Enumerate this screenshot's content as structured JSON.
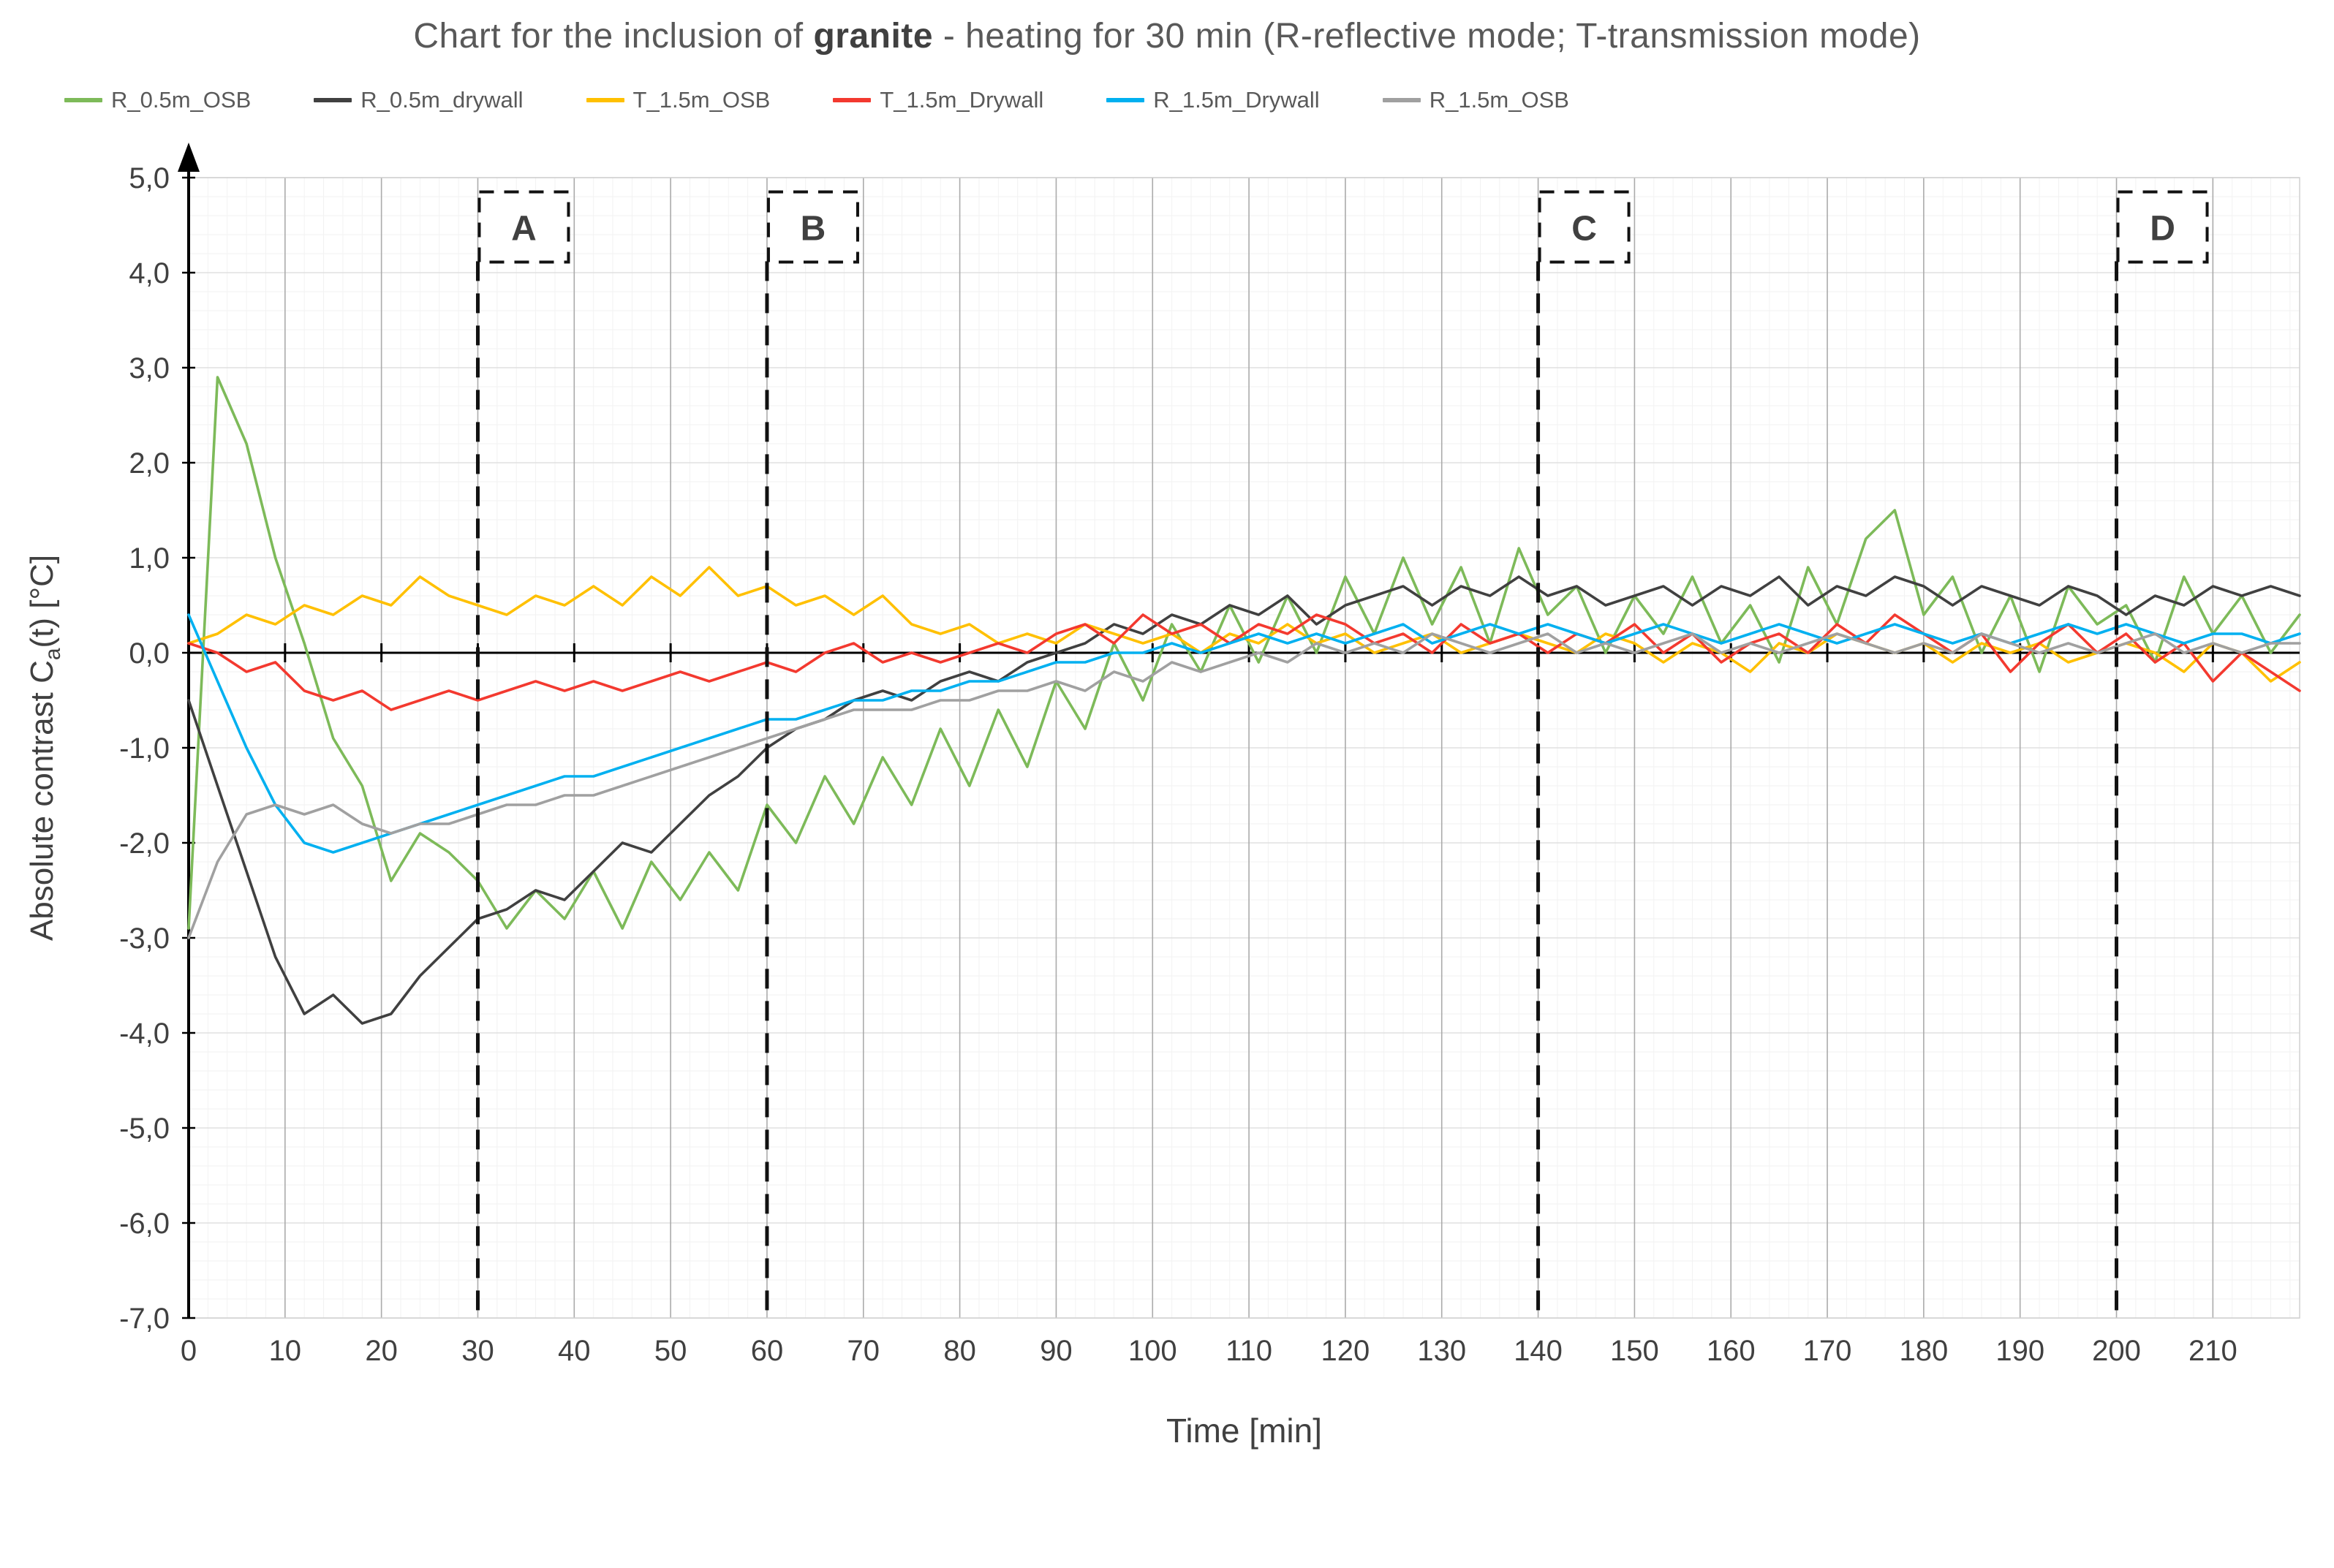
{
  "chart": {
    "title_prefix": "Chart for the inclusion of ",
    "title_bold": "granite",
    "title_suffix": " - heating for 30 min (R-reflective mode; T-transmission mode)"
  },
  "chart_data": {
    "type": "line",
    "title": "Chart for the inclusion of granite - heating for 30 min (R-reflective mode; T-transmission mode)",
    "xlabel": "Time [min]",
    "ylabel": "Absolute contrast Ca(t) [°C]",
    "ylabel_parts": {
      "prefix": "Absolute contrast C",
      "sub": "a",
      "suffix": "(t)  [°C]"
    },
    "xlim": [
      0,
      219
    ],
    "ylim": [
      -7,
      5
    ],
    "grid": true,
    "legend_position": "top",
    "xticks": [
      0,
      10,
      20,
      30,
      40,
      50,
      60,
      70,
      80,
      90,
      100,
      110,
      120,
      130,
      140,
      150,
      160,
      170,
      180,
      190,
      200,
      210
    ],
    "yticks": [
      5,
      4,
      3,
      2,
      1,
      0,
      -1,
      -2,
      -3,
      -4,
      -5,
      -6,
      -7
    ],
    "ytick_labels": [
      "5,0",
      "4,0",
      "3,0",
      "2,0",
      "1,0",
      "0,0",
      "-1,0",
      "-2,0",
      "-3,0",
      "-4,0",
      "-5,0",
      "-6,0",
      "-7,0"
    ],
    "markers": [
      {
        "x": 30,
        "label": "A"
      },
      {
        "x": 60,
        "label": "B"
      },
      {
        "x": 140,
        "label": "C"
      },
      {
        "x": 200,
        "label": "D"
      }
    ],
    "x": [
      0,
      3,
      6,
      9,
      12,
      15,
      18,
      21,
      24,
      27,
      30,
      33,
      36,
      39,
      42,
      45,
      48,
      51,
      54,
      57,
      60,
      63,
      66,
      69,
      72,
      75,
      78,
      81,
      84,
      87,
      90,
      93,
      96,
      99,
      102,
      105,
      108,
      111,
      114,
      117,
      120,
      123,
      126,
      129,
      132,
      135,
      138,
      141,
      144,
      147,
      150,
      153,
      156,
      159,
      162,
      165,
      168,
      171,
      174,
      177,
      180,
      183,
      186,
      189,
      192,
      195,
      198,
      201,
      204,
      207,
      210,
      213,
      216,
      219
    ],
    "series": [
      {
        "name": "R_0.5m_OSB",
        "color": "#7dba59",
        "values": [
          -2.9,
          2.9,
          2.2,
          1.0,
          0.1,
          -0.9,
          -1.4,
          -2.4,
          -1.9,
          -2.1,
          -2.4,
          -2.9,
          -2.5,
          -2.8,
          -2.3,
          -2.9,
          -2.2,
          -2.6,
          -2.1,
          -2.5,
          -1.6,
          -2.0,
          -1.3,
          -1.8,
          -1.1,
          -1.6,
          -0.8,
          -1.4,
          -0.6,
          -1.2,
          -0.3,
          -0.8,
          0.1,
          -0.5,
          0.3,
          -0.2,
          0.5,
          -0.1,
          0.6,
          0.0,
          0.8,
          0.2,
          1.0,
          0.3,
          0.9,
          0.1,
          1.1,
          0.4,
          0.7,
          0.0,
          0.6,
          0.2,
          0.8,
          0.1,
          0.5,
          -0.1,
          0.9,
          0.3,
          1.2,
          1.5,
          0.4,
          0.8,
          0.0,
          0.6,
          -0.2,
          0.7,
          0.3,
          0.5,
          -0.1,
          0.8,
          0.2,
          0.6,
          0.0,
          0.4
        ]
      },
      {
        "name": "R_0.5m_drywall",
        "color": "#404040",
        "values": [
          -0.5,
          -1.4,
          -2.3,
          -3.2,
          -3.8,
          -3.6,
          -3.9,
          -3.8,
          -3.4,
          -3.1,
          -2.8,
          -2.7,
          -2.5,
          -2.6,
          -2.3,
          -2.0,
          -2.1,
          -1.8,
          -1.5,
          -1.3,
          -1.0,
          -0.8,
          -0.7,
          -0.5,
          -0.4,
          -0.5,
          -0.3,
          -0.2,
          -0.3,
          -0.1,
          0.0,
          0.1,
          0.3,
          0.2,
          0.4,
          0.3,
          0.5,
          0.4,
          0.6,
          0.3,
          0.5,
          0.6,
          0.7,
          0.5,
          0.7,
          0.6,
          0.8,
          0.6,
          0.7,
          0.5,
          0.6,
          0.7,
          0.5,
          0.7,
          0.6,
          0.8,
          0.5,
          0.7,
          0.6,
          0.8,
          0.7,
          0.5,
          0.7,
          0.6,
          0.5,
          0.7,
          0.6,
          0.4,
          0.6,
          0.5,
          0.7,
          0.6,
          0.7,
          0.6
        ]
      },
      {
        "name": "T_1.5m_OSB",
        "color": "#ffc000",
        "values": [
          0.1,
          0.2,
          0.4,
          0.3,
          0.5,
          0.4,
          0.6,
          0.5,
          0.8,
          0.6,
          0.5,
          0.4,
          0.6,
          0.5,
          0.7,
          0.5,
          0.8,
          0.6,
          0.9,
          0.6,
          0.7,
          0.5,
          0.6,
          0.4,
          0.6,
          0.3,
          0.2,
          0.3,
          0.1,
          0.2,
          0.1,
          0.3,
          0.2,
          0.1,
          0.2,
          0.0,
          0.2,
          0.1,
          0.3,
          0.1,
          0.2,
          0.0,
          0.1,
          0.2,
          0.0,
          0.1,
          0.2,
          0.1,
          0.0,
          0.2,
          0.1,
          -0.1,
          0.1,
          0.0,
          -0.2,
          0.1,
          0.0,
          0.2,
          0.1,
          0.0,
          0.1,
          -0.1,
          0.1,
          0.0,
          0.1,
          -0.1,
          0.0,
          0.1,
          0.0,
          -0.2,
          0.1,
          0.0,
          -0.3,
          -0.1
        ]
      },
      {
        "name": "T_1.5m_Drywall",
        "color": "#f3392f",
        "values": [
          0.1,
          0.0,
          -0.2,
          -0.1,
          -0.4,
          -0.5,
          -0.4,
          -0.6,
          -0.5,
          -0.4,
          -0.5,
          -0.4,
          -0.3,
          -0.4,
          -0.3,
          -0.4,
          -0.3,
          -0.2,
          -0.3,
          -0.2,
          -0.1,
          -0.2,
          0.0,
          0.1,
          -0.1,
          0.0,
          -0.1,
          0.0,
          0.1,
          0.0,
          0.2,
          0.3,
          0.1,
          0.4,
          0.2,
          0.3,
          0.1,
          0.3,
          0.2,
          0.4,
          0.3,
          0.1,
          0.2,
          0.0,
          0.3,
          0.1,
          0.2,
          0.0,
          0.2,
          0.1,
          0.3,
          0.0,
          0.2,
          -0.1,
          0.1,
          0.2,
          0.0,
          0.3,
          0.1,
          0.4,
          0.2,
          0.0,
          0.2,
          -0.2,
          0.1,
          0.3,
          0.0,
          0.2,
          -0.1,
          0.1,
          -0.3,
          0.0,
          -0.2,
          -0.4
        ]
      },
      {
        "name": "R_1.5m_Drywall",
        "color": "#00b0f0",
        "values": [
          0.4,
          -0.3,
          -1.0,
          -1.6,
          -2.0,
          -2.1,
          -2.0,
          -1.9,
          -1.8,
          -1.7,
          -1.6,
          -1.5,
          -1.4,
          -1.3,
          -1.3,
          -1.2,
          -1.1,
          -1.0,
          -0.9,
          -0.8,
          -0.7,
          -0.7,
          -0.6,
          -0.5,
          -0.5,
          -0.4,
          -0.4,
          -0.3,
          -0.3,
          -0.2,
          -0.1,
          -0.1,
          0.0,
          0.0,
          0.1,
          0.0,
          0.1,
          0.2,
          0.1,
          0.2,
          0.1,
          0.2,
          0.3,
          0.1,
          0.2,
          0.3,
          0.2,
          0.3,
          0.2,
          0.1,
          0.2,
          0.3,
          0.2,
          0.1,
          0.2,
          0.3,
          0.2,
          0.1,
          0.2,
          0.3,
          0.2,
          0.1,
          0.2,
          0.1,
          0.2,
          0.3,
          0.2,
          0.3,
          0.2,
          0.1,
          0.2,
          0.2,
          0.1,
          0.2
        ]
      },
      {
        "name": "R_1.5m_OSB",
        "color": "#a0a0a0",
        "values": [
          -3.0,
          -2.2,
          -1.7,
          -1.6,
          -1.7,
          -1.6,
          -1.8,
          -1.9,
          -1.8,
          -1.8,
          -1.7,
          -1.6,
          -1.6,
          -1.5,
          -1.5,
          -1.4,
          -1.3,
          -1.2,
          -1.1,
          -1.0,
          -0.9,
          -0.8,
          -0.7,
          -0.6,
          -0.6,
          -0.6,
          -0.5,
          -0.5,
          -0.4,
          -0.4,
          -0.3,
          -0.4,
          -0.2,
          -0.3,
          -0.1,
          -0.2,
          -0.1,
          0.0,
          -0.1,
          0.1,
          0.0,
          0.1,
          0.0,
          0.2,
          0.1,
          0.0,
          0.1,
          0.2,
          0.0,
          0.1,
          0.0,
          0.1,
          0.2,
          0.0,
          0.1,
          0.0,
          0.1,
          0.2,
          0.1,
          0.0,
          0.1,
          0.0,
          0.2,
          0.1,
          0.0,
          0.1,
          0.0,
          0.1,
          0.2,
          0.0,
          0.1,
          0.0,
          0.1,
          0.1
        ]
      }
    ]
  }
}
